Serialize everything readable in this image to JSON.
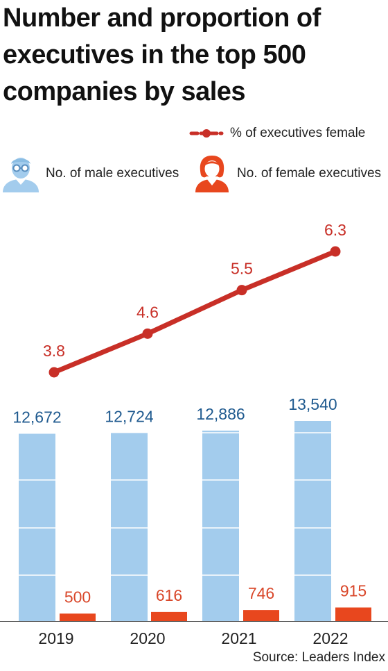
{
  "title_lines": [
    "Number and proportion of",
    "executives in the top 500",
    "companies by sales"
  ],
  "legend": {
    "line_label": "% of executives female",
    "male_label": "No. of male executives",
    "female_label": "No. of female executives",
    "male_icon": "male-person-with-glasses-icon",
    "female_icon": "female-person-icon"
  },
  "source": "Source: Leaders Index",
  "colors": {
    "male": "#a3cced",
    "female": "#e8471e",
    "line": "#c82f27",
    "male_label": "#1f5a8f",
    "female_label": "#d9472a",
    "line_label": "#c82f27",
    "text": "#222222"
  },
  "chart_data": {
    "type": "bar",
    "categories": [
      "2019",
      "2020",
      "2021",
      "2022"
    ],
    "series": [
      {
        "name": "No. of male executives",
        "type": "bar",
        "values": [
          12672,
          12724,
          12886,
          13540
        ],
        "labels": [
          "12,672",
          "12,724",
          "12,886",
          "13,540"
        ]
      },
      {
        "name": "No. of female executives",
        "type": "bar",
        "values": [
          500,
          616,
          746,
          915
        ],
        "labels": [
          "500",
          "616",
          "746",
          "915"
        ]
      },
      {
        "name": "% of executives female",
        "type": "line",
        "values": [
          3.8,
          4.6,
          5.5,
          6.3
        ],
        "labels": [
          "3.8",
          "4.6",
          "5.5",
          "6.3"
        ]
      }
    ],
    "grid": false,
    "legend_position": "top"
  }
}
